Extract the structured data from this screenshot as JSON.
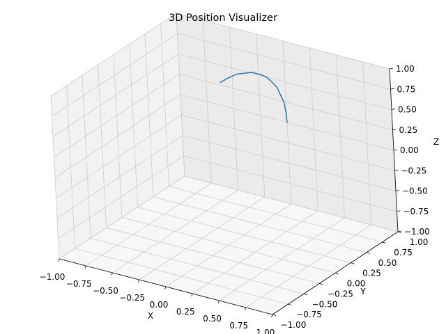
{
  "chart_data": {
    "type": "line",
    "projection": "3d",
    "title": "3D Position Visualizer",
    "xlabel": "X",
    "ylabel": "Y",
    "zlabel": "Z",
    "xlim": [
      -1.0,
      1.0
    ],
    "ylim": [
      -1.0,
      1.0
    ],
    "zlim": [
      -1.0,
      1.0
    ],
    "grid": true,
    "legend": "none",
    "x_ticks": [
      "−1.00",
      "−0.75",
      "−0.50",
      "−0.25",
      "0.00",
      "0.25",
      "0.50",
      "0.75",
      "1.00"
    ],
    "y_ticks": [
      "−1.00",
      "−0.75",
      "−0.50",
      "−0.25",
      "0.00",
      "0.25",
      "0.50",
      "0.75",
      "1.00"
    ],
    "z_ticks": [
      "−1.00",
      "−0.75",
      "−0.50",
      "−0.25",
      "0.00",
      "0.25",
      "0.50",
      "0.75",
      "1.00"
    ],
    "series": [
      {
        "color": "#1f77b4",
        "x": [
          0.0,
          0.0,
          0.0,
          0.0,
          0.0,
          0.0,
          0.0,
          0.0,
          0.0,
          0.0,
          0.0,
          0.0,
          0.0
        ],
        "y": [
          0.0,
          0.13,
          0.26,
          0.38,
          0.5,
          0.61,
          0.71,
          0.79,
          0.87,
          0.92,
          0.97,
          0.99,
          1.0
        ],
        "z": [
          1.0,
          0.99,
          0.97,
          0.92,
          0.87,
          0.79,
          0.71,
          0.61,
          0.5,
          0.38,
          0.26,
          0.13,
          0.0
        ]
      }
    ]
  }
}
